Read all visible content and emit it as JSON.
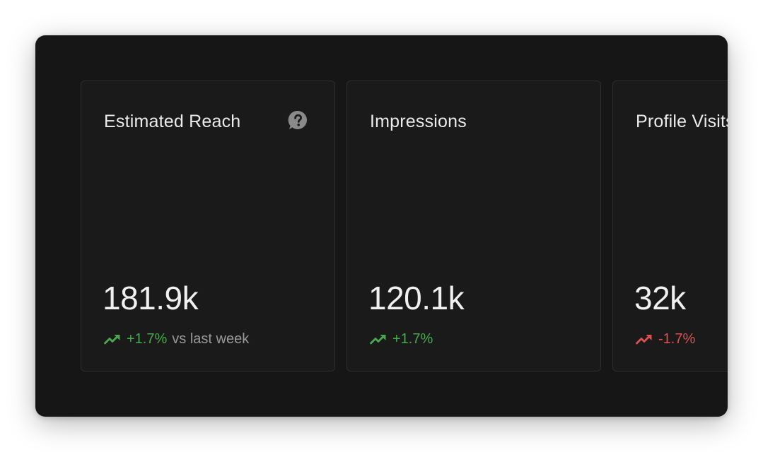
{
  "colors": {
    "positive": "#4aa84f",
    "negative": "#e05050",
    "panel_bg": "#161616",
    "card_bg": "#1a1a1a"
  },
  "cards": [
    {
      "title": "Estimated Reach",
      "has_help_icon": true,
      "help_icon": "question-bubble-icon",
      "value": "181.9k",
      "delta": "+1.7%",
      "delta_direction": "up",
      "delta_suffix": "vs last week"
    },
    {
      "title": "Impressions",
      "has_help_icon": false,
      "value": "120.1k",
      "delta": "+1.7%",
      "delta_direction": "up",
      "delta_suffix": ""
    },
    {
      "title": "Profile Visits",
      "has_help_icon": false,
      "value": "32k",
      "delta": "-1.7%",
      "delta_direction": "down",
      "delta_suffix": ""
    }
  ]
}
